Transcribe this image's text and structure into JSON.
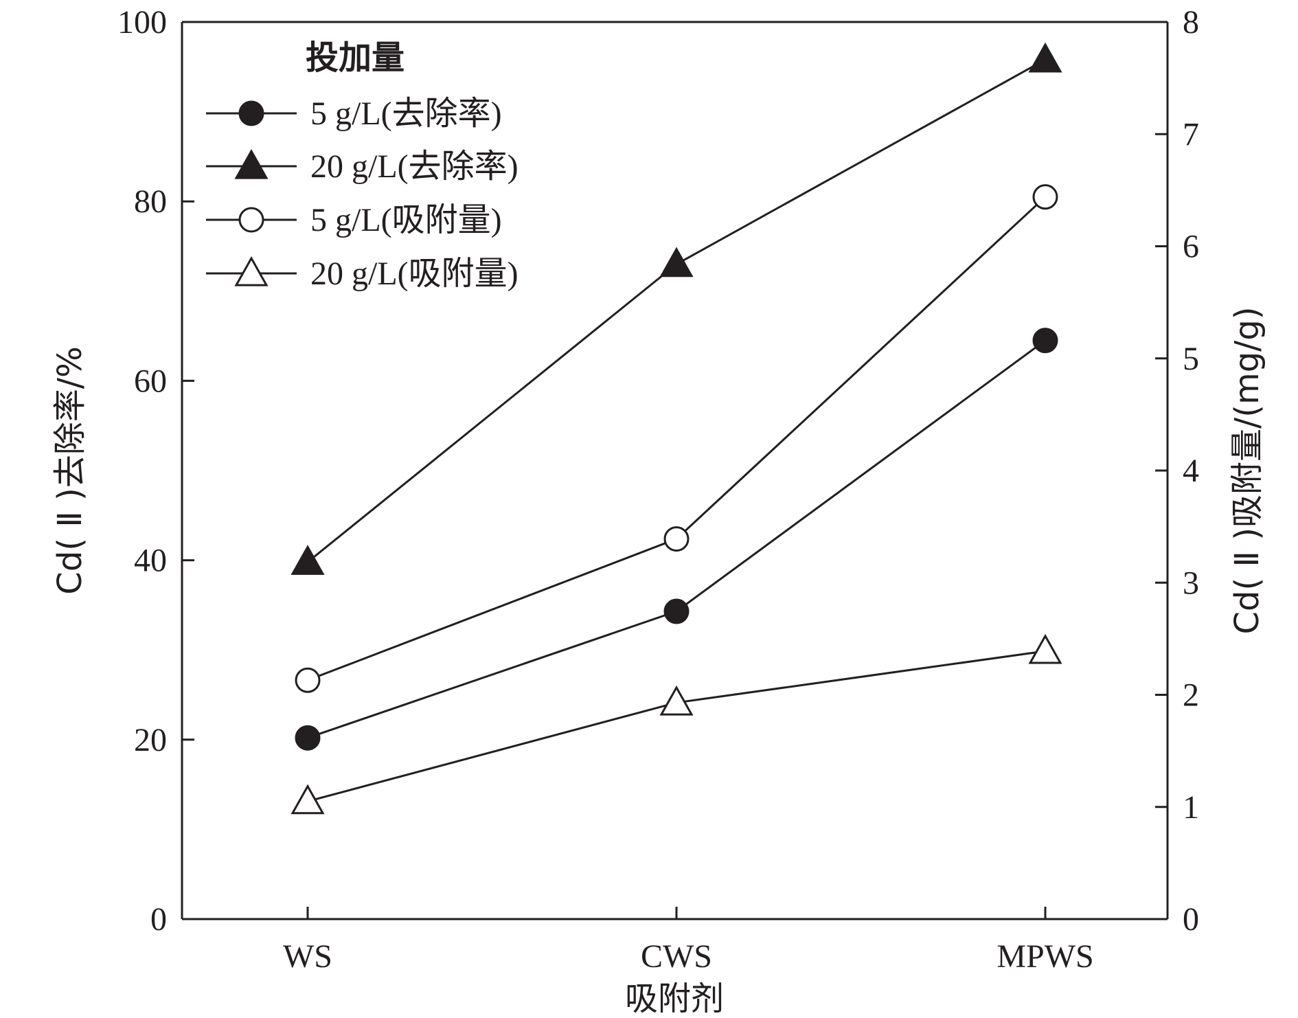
{
  "chart_data": {
    "type": "line",
    "categories": [
      "WS",
      "CWS",
      "MPWS"
    ],
    "xlabel": "吸附剂",
    "ylabel_left": "Cd( Ⅱ )去除率/%",
    "ylabel_right": "Cd( Ⅱ )吸附量/(mg/g)",
    "ylim_left": [
      0,
      100
    ],
    "ylim_right": [
      0,
      8
    ],
    "yticks_left": [
      "0",
      "20",
      "40",
      "60",
      "80",
      "100"
    ],
    "yticks_right": [
      "0",
      "1",
      "2",
      "3",
      "4",
      "5",
      "6",
      "7",
      "8"
    ],
    "grid": false,
    "legend": {
      "title": "投加量",
      "position": "top-left"
    },
    "series": [
      {
        "name": "5 g/L(去除率)",
        "axis": "left",
        "marker": "circle",
        "filled": true,
        "values": [
          20.2,
          34.3,
          64.5
        ]
      },
      {
        "name": "20 g/L(去除率)",
        "axis": "left",
        "marker": "triangle",
        "filled": true,
        "values": [
          39.8,
          73.0,
          95.8
        ]
      },
      {
        "name": "5 g/L(吸附量)",
        "axis": "right",
        "marker": "circle",
        "filled": false,
        "values": [
          2.13,
          3.39,
          6.44
        ]
      },
      {
        "name": "20 g/L(吸附量)",
        "axis": "right",
        "marker": "triangle",
        "filled": false,
        "values": [
          1.05,
          1.93,
          2.39
        ]
      }
    ],
    "colors": {
      "ink": "#231f20",
      "background": "#ffffff"
    }
  }
}
